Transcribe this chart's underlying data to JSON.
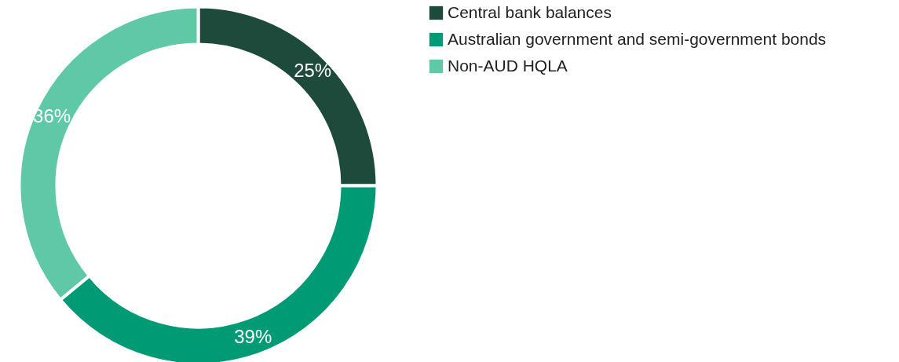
{
  "chart_data": {
    "type": "donut",
    "categories": [
      "Central bank balances",
      "Australian government and semi-government bonds",
      "Non-AUD HQLA"
    ],
    "values": [
      25,
      39,
      36
    ],
    "colors": [
      "#1e4a3c",
      "#009a74",
      "#5fc8a6"
    ],
    "value_labels": [
      "25%",
      "39%",
      "36%"
    ],
    "legend": "right"
  }
}
